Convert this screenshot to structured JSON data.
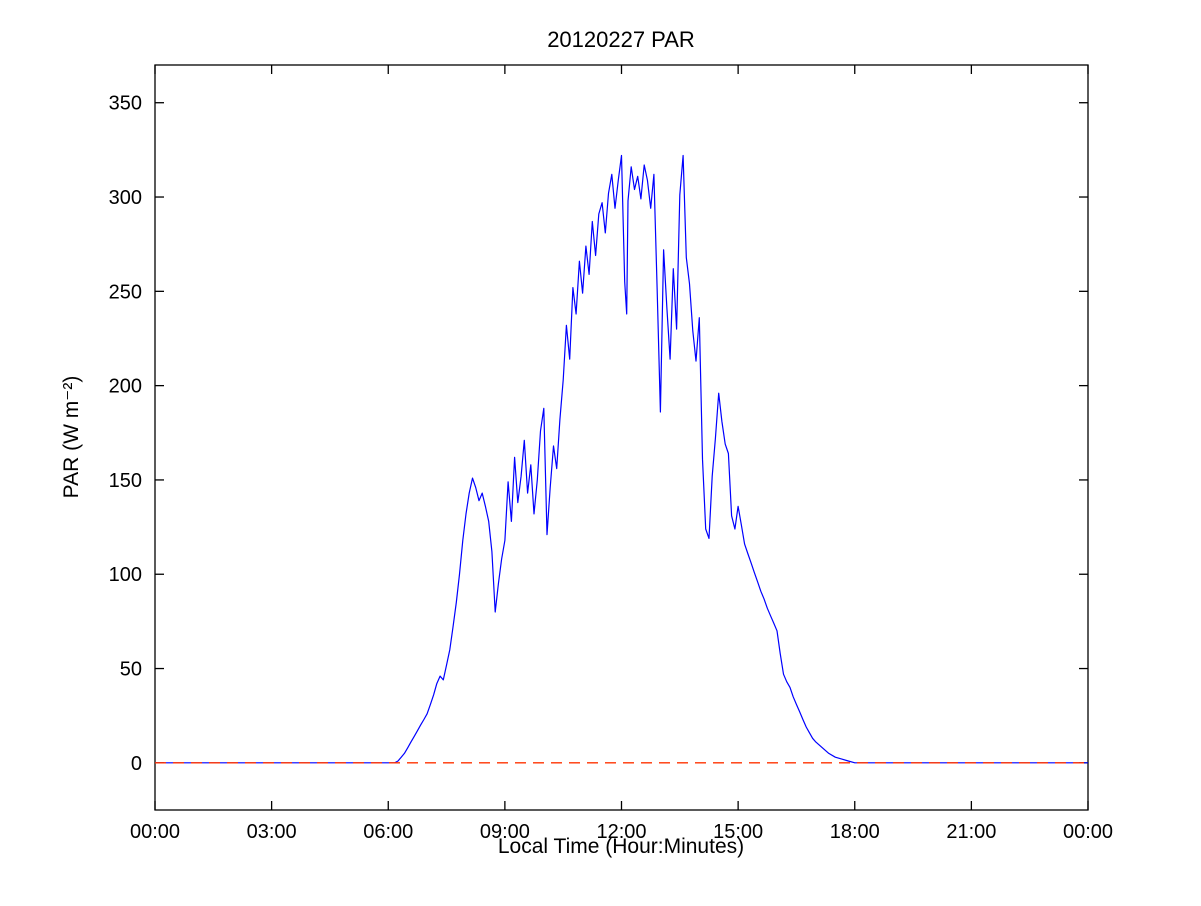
{
  "chart_data": {
    "type": "line",
    "title": "20120227 PAR",
    "xlabel": "Local Time (Hour:Minutes)",
    "ylabel": "PAR (W m⁻²)",
    "x_unit": "minutes since midnight",
    "xlim": [
      0,
      1440
    ],
    "ylim": [
      -25,
      370
    ],
    "grid": false,
    "legend": null,
    "xticks": [
      {
        "v": 0,
        "label": "00:00"
      },
      {
        "v": 180,
        "label": "03:00"
      },
      {
        "v": 360,
        "label": "06:00"
      },
      {
        "v": 540,
        "label": "09:00"
      },
      {
        "v": 720,
        "label": "12:00"
      },
      {
        "v": 900,
        "label": "15:00"
      },
      {
        "v": 1080,
        "label": "18:00"
      },
      {
        "v": 1260,
        "label": "21:00"
      },
      {
        "v": 1440,
        "label": "00:00"
      }
    ],
    "yticks": [
      {
        "v": 0,
        "label": "0"
      },
      {
        "v": 50,
        "label": "50"
      },
      {
        "v": 100,
        "label": "100"
      },
      {
        "v": 150,
        "label": "150"
      },
      {
        "v": 200,
        "label": "200"
      },
      {
        "v": 250,
        "label": "250"
      },
      {
        "v": 300,
        "label": "300"
      },
      {
        "v": 350,
        "label": "350"
      }
    ],
    "series": [
      {
        "name": "par",
        "color": "#0000ff",
        "style": "solid",
        "width": 1.2,
        "points": [
          [
            0,
            0
          ],
          [
            60,
            0
          ],
          [
            120,
            0
          ],
          [
            180,
            0
          ],
          [
            240,
            0
          ],
          [
            300,
            0
          ],
          [
            330,
            0
          ],
          [
            360,
            0
          ],
          [
            370,
            0
          ],
          [
            375,
            1
          ],
          [
            380,
            3
          ],
          [
            385,
            5
          ],
          [
            390,
            8
          ],
          [
            395,
            11
          ],
          [
            400,
            14
          ],
          [
            405,
            17
          ],
          [
            410,
            20
          ],
          [
            415,
            23
          ],
          [
            420,
            26
          ],
          [
            425,
            31
          ],
          [
            430,
            36
          ],
          [
            435,
            42
          ],
          [
            440,
            46
          ],
          [
            445,
            44
          ],
          [
            450,
            52
          ],
          [
            455,
            60
          ],
          [
            460,
            72
          ],
          [
            465,
            85
          ],
          [
            470,
            100
          ],
          [
            475,
            118
          ],
          [
            480,
            132
          ],
          [
            485,
            143
          ],
          [
            490,
            151
          ],
          [
            495,
            146
          ],
          [
            500,
            139
          ],
          [
            505,
            143
          ],
          [
            510,
            136
          ],
          [
            515,
            128
          ],
          [
            520,
            112
          ],
          [
            525,
            80
          ],
          [
            530,
            95
          ],
          [
            535,
            108
          ],
          [
            540,
            118
          ],
          [
            545,
            149
          ],
          [
            550,
            128
          ],
          [
            555,
            162
          ],
          [
            560,
            138
          ],
          [
            565,
            152
          ],
          [
            570,
            171
          ],
          [
            575,
            143
          ],
          [
            580,
            158
          ],
          [
            585,
            132
          ],
          [
            590,
            150
          ],
          [
            595,
            176
          ],
          [
            600,
            188
          ],
          [
            605,
            121
          ],
          [
            610,
            146
          ],
          [
            615,
            168
          ],
          [
            620,
            156
          ],
          [
            625,
            182
          ],
          [
            630,
            203
          ],
          [
            635,
            232
          ],
          [
            640,
            214
          ],
          [
            645,
            252
          ],
          [
            650,
            238
          ],
          [
            655,
            266
          ],
          [
            660,
            249
          ],
          [
            665,
            274
          ],
          [
            670,
            259
          ],
          [
            675,
            287
          ],
          [
            680,
            269
          ],
          [
            685,
            291
          ],
          [
            690,
            297
          ],
          [
            695,
            281
          ],
          [
            700,
            302
          ],
          [
            705,
            312
          ],
          [
            710,
            294
          ],
          [
            715,
            309
          ],
          [
            720,
            322
          ],
          [
            725,
            255
          ],
          [
            728,
            238
          ],
          [
            730,
            298
          ],
          [
            735,
            316
          ],
          [
            740,
            304
          ],
          [
            745,
            311
          ],
          [
            750,
            299
          ],
          [
            755,
            317
          ],
          [
            760,
            309
          ],
          [
            765,
            294
          ],
          [
            770,
            312
          ],
          [
            775,
            252
          ],
          [
            780,
            186
          ],
          [
            785,
            272
          ],
          [
            790,
            241
          ],
          [
            795,
            214
          ],
          [
            800,
            262
          ],
          [
            805,
            230
          ],
          [
            810,
            301
          ],
          [
            815,
            322
          ],
          [
            820,
            268
          ],
          [
            825,
            254
          ],
          [
            830,
            229
          ],
          [
            835,
            213
          ],
          [
            840,
            236
          ],
          [
            845,
            161
          ],
          [
            850,
            124
          ],
          [
            855,
            119
          ],
          [
            860,
            152
          ],
          [
            865,
            172
          ],
          [
            870,
            196
          ],
          [
            875,
            181
          ],
          [
            880,
            169
          ],
          [
            885,
            164
          ],
          [
            890,
            131
          ],
          [
            895,
            124
          ],
          [
            900,
            136
          ],
          [
            905,
            126
          ],
          [
            910,
            116
          ],
          [
            915,
            111
          ],
          [
            920,
            106
          ],
          [
            925,
            101
          ],
          [
            930,
            96
          ],
          [
            935,
            91
          ],
          [
            940,
            87
          ],
          [
            945,
            82
          ],
          [
            950,
            78
          ],
          [
            955,
            74
          ],
          [
            960,
            70
          ],
          [
            965,
            58
          ],
          [
            970,
            47
          ],
          [
            975,
            43
          ],
          [
            980,
            40
          ],
          [
            985,
            35
          ],
          [
            990,
            31
          ],
          [
            995,
            27
          ],
          [
            1000,
            23
          ],
          [
            1005,
            19
          ],
          [
            1010,
            16
          ],
          [
            1015,
            13
          ],
          [
            1020,
            11
          ],
          [
            1030,
            8
          ],
          [
            1040,
            5
          ],
          [
            1050,
            3
          ],
          [
            1060,
            2
          ],
          [
            1070,
            1
          ],
          [
            1080,
            0
          ],
          [
            1110,
            0
          ],
          [
            1140,
            0
          ],
          [
            1200,
            0
          ],
          [
            1260,
            0
          ],
          [
            1320,
            0
          ],
          [
            1380,
            0
          ],
          [
            1440,
            0
          ]
        ]
      },
      {
        "name": "zero-reference",
        "color": "#ff3300",
        "style": "dashed",
        "width": 1.3,
        "points": [
          [
            0,
            0
          ],
          [
            1440,
            0
          ]
        ]
      }
    ]
  }
}
